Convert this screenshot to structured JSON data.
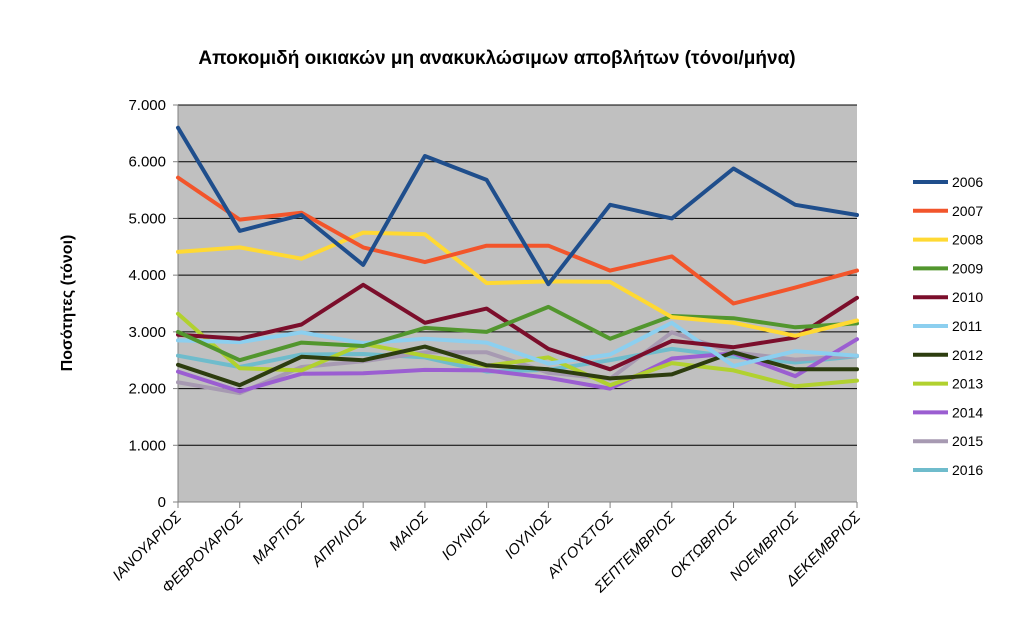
{
  "chart_data": {
    "type": "line",
    "title": "Αποκομιδή οικιακών μη ανακυκλώσιμων αποβλήτων (τόνοι/μήνα)",
    "xlabel": "",
    "ylabel": "Ποσότητες (τόνοι)",
    "ylim": [
      0,
      7000
    ],
    "yticks": [
      0,
      1000,
      2000,
      3000,
      4000,
      5000,
      6000,
      7000
    ],
    "ytick_labels": [
      "0",
      "1.000",
      "2.000",
      "3.000",
      "4.000",
      "5.000",
      "6.000",
      "7.000"
    ],
    "categories": [
      "ΙΑΝΟΥΑΡΙΟΣ",
      "ΦΕΒΡΟΥΑΡΙΟΣ",
      "ΜΑΡΤΙΟΣ",
      "ΑΠΡΙΛΙΟΣ",
      "ΜΑΙΟΣ",
      "ΙΟΥΝΙΟΣ",
      "ΙΟΥΛΙΟΣ",
      "ΑΥΓΟΥΣΤΟΣ",
      "ΣΕΠΤΕΜΒΡΙΟΣ",
      "ΟΚΤΩΒΡΙΟΣ",
      "ΝΟΕΜΒΡΙΟΣ",
      "ΔΕΚΕΜΒΡΙΟΣ"
    ],
    "grid": true,
    "plot_background": "#c0c0c0",
    "legend_position": "right",
    "series": [
      {
        "name": "2006",
        "color": "#1f4e8c",
        "values": [
          6600,
          4780,
          5060,
          4180,
          6100,
          5680,
          3840,
          5240,
          5000,
          5880,
          5240,
          5060
        ]
      },
      {
        "name": "2007",
        "color": "#f2552b",
        "values": [
          5720,
          4980,
          5100,
          4490,
          4230,
          4520,
          4520,
          4080,
          4330,
          3500,
          3780,
          4080
        ]
      },
      {
        "name": "2008",
        "color": "#ffd933",
        "values": [
          4410,
          4490,
          4290,
          4750,
          4720,
          3860,
          3890,
          3880,
          3260,
          3160,
          2930,
          3200
        ]
      },
      {
        "name": "2009",
        "color": "#52962e",
        "values": [
          3000,
          2500,
          2810,
          2750,
          3070,
          3000,
          3440,
          2880,
          3280,
          3240,
          3080,
          3150
        ]
      },
      {
        "name": "2010",
        "color": "#7b0e2b",
        "values": [
          2950,
          2880,
          3130,
          3830,
          3160,
          3410,
          2700,
          2340,
          2840,
          2730,
          2900,
          3600
        ]
      },
      {
        "name": "2011",
        "color": "#8ccfef",
        "values": [
          2850,
          2820,
          2990,
          2800,
          2880,
          2810,
          2440,
          2600,
          3160,
          2400,
          2660,
          2580
        ]
      },
      {
        "name": "2012",
        "color": "#2d3d0f",
        "values": [
          2420,
          2060,
          2560,
          2500,
          2740,
          2410,
          2340,
          2180,
          2250,
          2640,
          2340,
          2340
        ]
      },
      {
        "name": "2013",
        "color": "#b1d12f",
        "values": [
          3320,
          2360,
          2320,
          2790,
          2580,
          2400,
          2550,
          2060,
          2450,
          2320,
          2040,
          2140
        ]
      },
      {
        "name": "2014",
        "color": "#9b5ed1",
        "values": [
          2300,
          1950,
          2260,
          2270,
          2330,
          2320,
          2190,
          2000,
          2530,
          2620,
          2220,
          2870
        ]
      },
      {
        "name": "2015",
        "color": "#a79ab2",
        "values": [
          2110,
          1920,
          2380,
          2480,
          2640,
          2640,
          2280,
          2170,
          2990,
          2640,
          2510,
          2580
        ]
      },
      {
        "name": "2016",
        "color": "#6fbccc",
        "values": [
          2580,
          2380,
          2600,
          2610,
          2550,
          2300,
          2330,
          2500,
          2700,
          2560,
          2460,
          2570
        ]
      }
    ]
  }
}
